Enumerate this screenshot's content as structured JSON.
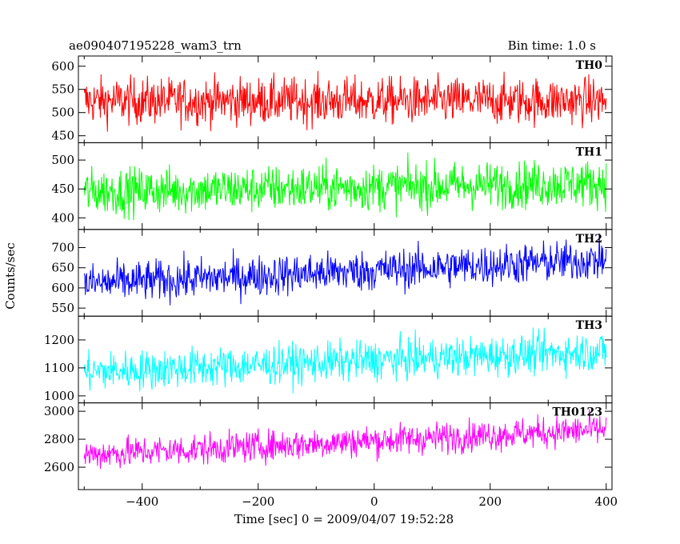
{
  "chart_data": {
    "type": "line",
    "title": "ae090407195228_wam3_trn",
    "subtitle": "Bin time: 1.0 s",
    "xlabel": "Time [sec] 0 = 2009/04/07 19:52:28",
    "ylabel": "Counts/sec",
    "xlim": [
      -510,
      410
    ],
    "x_ticks": [
      -400,
      -200,
      0,
      200,
      400
    ],
    "panels": [
      {
        "name": "TH0",
        "color": "#ff0000",
        "ylim": [
          435,
          622
        ],
        "y_ticks": [
          450,
          500,
          550,
          600
        ],
        "start": 525,
        "end": 525,
        "noise": 25
      },
      {
        "name": "TH1",
        "color": "#00ff00",
        "ylim": [
          380,
          530
        ],
        "y_ticks": [
          400,
          450,
          500
        ],
        "start": 445,
        "end": 460,
        "noise": 20
      },
      {
        "name": "TH2",
        "color": "#0000ff",
        "ylim": [
          530,
          745
        ],
        "y_ticks": [
          550,
          600,
          650,
          700
        ],
        "start": 610,
        "end": 670,
        "noise": 25
      },
      {
        "name": "TH3",
        "color": "#00ffff",
        "ylim": [
          975,
          1285
        ],
        "y_ticks": [
          1000,
          1100,
          1200
        ],
        "start": 1085,
        "end": 1160,
        "noise": 35
      },
      {
        "name": "TH0123",
        "color": "#ff00ff",
        "ylim": [
          2440,
          3060
        ],
        "y_ticks": [
          2600,
          2800,
          3000
        ],
        "start": 2690,
        "end": 2870,
        "noise": 55
      }
    ],
    "x_start": -500,
    "x_end": 400,
    "bin": 1.0
  }
}
